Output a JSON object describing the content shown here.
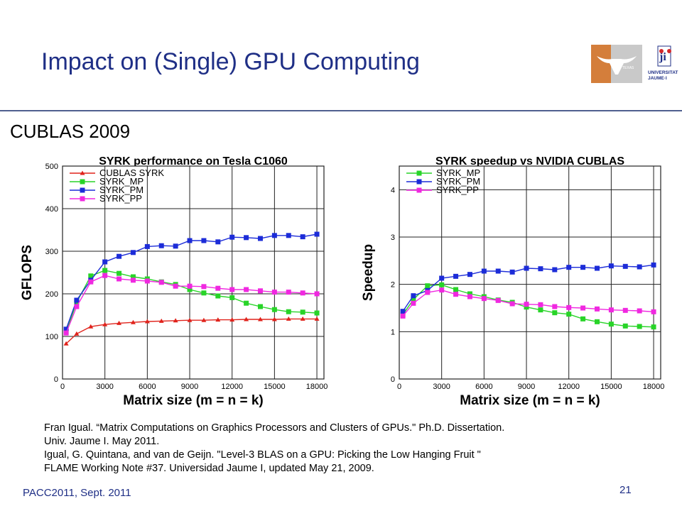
{
  "header": {
    "title": "Impact on (Single) GPU Computing",
    "subtitle": "CUBLAS 2009",
    "logos": {
      "ut": "TEXAS",
      "uji_lines": [
        "UNIVERSITAT",
        "JAUME·I"
      ]
    }
  },
  "chart_data": [
    {
      "type": "line",
      "title": "SYRK performance on Tesla C1060",
      "xlabel": "Matrix size (m = n = k)",
      "ylabel": "GFLOPS",
      "xlim": [
        0,
        18500
      ],
      "ylim": [
        0,
        500
      ],
      "xticks": [
        0,
        3000,
        6000,
        9000,
        12000,
        15000,
        18000
      ],
      "yticks": [
        0,
        100,
        200,
        300,
        400,
        500
      ],
      "grid": true,
      "legend": "top-left",
      "x": [
        256,
        1000,
        2000,
        3000,
        4000,
        5000,
        6000,
        7000,
        8000,
        9000,
        10000,
        11000,
        12000,
        13000,
        14000,
        15000,
        16000,
        17000,
        18000
      ],
      "series": [
        {
          "name": "CUBLAS SYRK",
          "color": "#e0231c",
          "marker": "triangle",
          "values": [
            83,
            106,
            123,
            128,
            131,
            133,
            135,
            136,
            137,
            138,
            138,
            139,
            139,
            140,
            140,
            140,
            141,
            141,
            141
          ]
        },
        {
          "name": "SYRK_MP",
          "color": "#28d428",
          "marker": "square",
          "values": [
            110,
            180,
            242,
            255,
            248,
            240,
            235,
            228,
            222,
            210,
            202,
            195,
            191,
            178,
            170,
            163,
            158,
            157,
            155
          ]
        },
        {
          "name": "SYRK_PM",
          "color": "#1c2cd8",
          "marker": "square",
          "values": [
            117,
            185,
            232,
            275,
            288,
            297,
            311,
            313,
            312,
            325,
            325,
            322,
            333,
            332,
            330,
            337,
            337,
            334,
            340
          ]
        },
        {
          "name": "SYRK_PP",
          "color": "#f028e0",
          "marker": "square",
          "values": [
            108,
            170,
            228,
            243,
            235,
            232,
            230,
            227,
            218,
            218,
            217,
            213,
            210,
            210,
            207,
            204,
            204,
            202,
            200
          ]
        }
      ]
    },
    {
      "type": "line",
      "title": "SYRK speedup vs NVIDIA CUBLAS",
      "xlabel": "Matrix size (m = n = k)",
      "ylabel": "Speedup",
      "xlim": [
        0,
        18500
      ],
      "ylim": [
        0,
        4.5
      ],
      "xticks": [
        0,
        3000,
        6000,
        9000,
        12000,
        15000,
        18000
      ],
      "yticks": [
        0,
        1,
        2,
        3,
        4
      ],
      "grid": true,
      "legend": "top-left",
      "x": [
        256,
        1000,
        2000,
        3000,
        4000,
        5000,
        6000,
        7000,
        8000,
        9000,
        10000,
        11000,
        12000,
        13000,
        14000,
        15000,
        16000,
        17000,
        18000
      ],
      "series": [
        {
          "name": "SYRK_MP",
          "color": "#28d428",
          "marker": "square",
          "values": [
            1.36,
            1.68,
            1.97,
            1.99,
            1.89,
            1.8,
            1.74,
            1.67,
            1.62,
            1.52,
            1.46,
            1.4,
            1.37,
            1.27,
            1.21,
            1.16,
            1.12,
            1.11,
            1.1
          ]
        },
        {
          "name": "SYRK_PM",
          "color": "#1c2cd8",
          "marker": "square",
          "values": [
            1.43,
            1.76,
            1.87,
            2.13,
            2.17,
            2.21,
            2.28,
            2.28,
            2.26,
            2.34,
            2.33,
            2.31,
            2.36,
            2.36,
            2.34,
            2.39,
            2.38,
            2.37,
            2.41
          ]
        },
        {
          "name": "SYRK_PP",
          "color": "#f028e0",
          "marker": "square",
          "values": [
            1.33,
            1.6,
            1.83,
            1.88,
            1.79,
            1.74,
            1.7,
            1.66,
            1.59,
            1.58,
            1.57,
            1.53,
            1.51,
            1.5,
            1.48,
            1.46,
            1.45,
            1.44,
            1.42
          ]
        }
      ]
    }
  ],
  "references": [
    "Fran Igual. “Matrix Computations on Graphics Processors and Clusters of GPUs.\" Ph.D. Dissertation.",
    "Univ. Jaume I. May 2011.",
    "Igual, G. Quintana, and van de Geijn. \"Level-3 BLAS on a GPU: Picking the Low Hanging Fruit \"",
    "FLAME Working Note #37. Universidad Jaume I, updated May 21, 2009."
  ],
  "footer": {
    "event": "PACC2011, Sept. 2011",
    "page": "21"
  }
}
